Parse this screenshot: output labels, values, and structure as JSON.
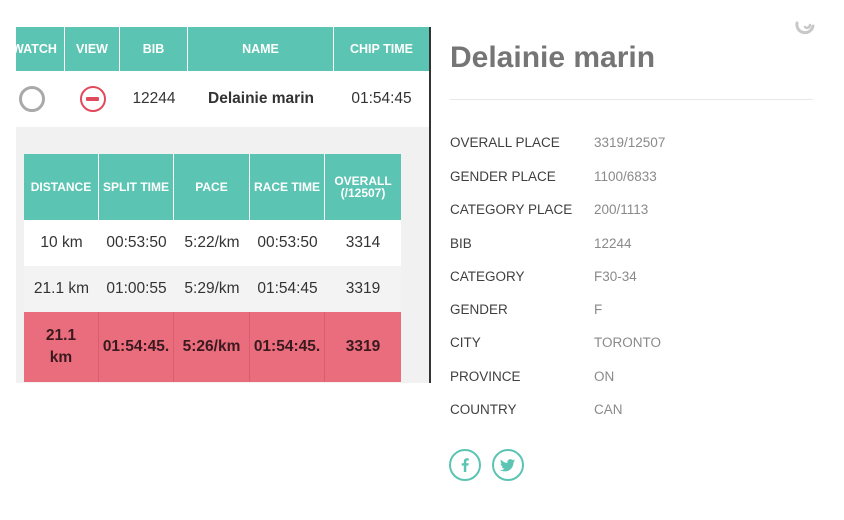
{
  "results_table": {
    "headers": [
      "WATCH",
      "VIEW",
      "BIB",
      "NAME",
      "CHIP TIME"
    ],
    "row": {
      "bib": "12244",
      "name": "Delainie marin",
      "chip_time": "01:54:45"
    }
  },
  "splits_table": {
    "headers": [
      "DISTANCE",
      "SPLIT TIME",
      "PACE",
      "RACE TIME",
      "OVERALL (/12507)"
    ],
    "rows": [
      {
        "distance": "10 km",
        "split_time": "00:53:50",
        "pace": "5:22/km",
        "race_time": "00:53:50",
        "overall": "3314"
      },
      {
        "distance": "21.1 km",
        "split_time": "01:00:55",
        "pace": "5:29/km",
        "race_time": "01:54:45",
        "overall": "3319"
      }
    ],
    "total": {
      "distance": "21.1 km",
      "split_time": "01:54:45.",
      "pace": "5:26/km",
      "race_time": "01:54:45.",
      "overall": "3319"
    }
  },
  "runner": {
    "name": "Delainie marin",
    "details": [
      {
        "label": "OVERALL PLACE",
        "value": "3319/12507"
      },
      {
        "label": "GENDER PLACE",
        "value": "1100/6833"
      },
      {
        "label": "CATEGORY PLACE",
        "value": "200/1113"
      },
      {
        "label": "BIB",
        "value": "12244"
      },
      {
        "label": "CATEGORY",
        "value": "F30-34"
      },
      {
        "label": "GENDER",
        "value": "F"
      },
      {
        "label": "CITY",
        "value": "TORONTO"
      },
      {
        "label": "PROVINCE",
        "value": "ON"
      },
      {
        "label": "COUNTRY",
        "value": "CAN"
      }
    ]
  },
  "icons": {
    "watch": "radio-circle-icon",
    "view": "minus-circle-icon",
    "corner": "partial-circle-icon",
    "share1": "facebook-icon",
    "share2": "twitter-icon"
  },
  "colors": {
    "accent_teal": "#5bc4b2",
    "link_blue": "#1f9dc4",
    "minus_red": "#e24a5c",
    "total_row": "#ea6d7e"
  }
}
